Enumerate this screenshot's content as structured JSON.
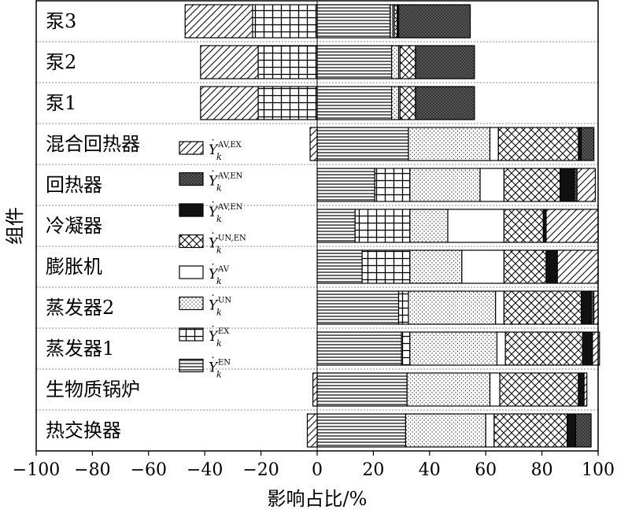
{
  "chart_data": {
    "type": "bar",
    "orientation": "horizontal",
    "stacked": true,
    "xlabel": "影响占比/%",
    "ylabel": "组件",
    "xlim": [
      -100,
      100
    ],
    "xticks": [
      "−100",
      "−80",
      "−60",
      "−40",
      "−20",
      "0",
      "20",
      "40",
      "60",
      "80",
      "100"
    ],
    "grid": false,
    "legend_position": "left",
    "categories": [
      "泵3",
      "泵2",
      "泵1",
      "混合回热器",
      "回热器",
      "冷凝器",
      "膨胀机",
      "蒸发器2",
      "蒸发器1",
      "生物质锅炉",
      "热交换器"
    ],
    "series": [
      {
        "key": "en",
        "name": "EN",
        "pattern": "hlines",
        "values": [
          0,
          0,
          0,
          32.5,
          20.5,
          13.5,
          16,
          29,
          30,
          32,
          31.5
        ],
        "neg": [
          0,
          0,
          0,
          0,
          0,
          0,
          0,
          0,
          0,
          0,
          0
        ],
        "pos_split": [
          26,
          26.5,
          26.5,
          0,
          0,
          0,
          0,
          0,
          0,
          0,
          0
        ]
      },
      {
        "key": "ex",
        "name": "EX",
        "pattern": "grid",
        "values": [
          0,
          0,
          0,
          0,
          12.5,
          19.5,
          17,
          3.5,
          3,
          0,
          0
        ],
        "neg": [
          -23,
          -21,
          -21,
          0,
          0,
          0,
          0,
          0,
          0,
          0,
          0
        ]
      },
      {
        "key": "un",
        "name": "UN",
        "pattern": "dots",
        "values": [
          1,
          2.5,
          2.5,
          29,
          25,
          13.5,
          18.5,
          31,
          31,
          29.5,
          28.5
        ],
        "neg": [
          0,
          0,
          0,
          0,
          0,
          0,
          0,
          0,
          0,
          0,
          0
        ]
      },
      {
        "key": "av",
        "name": "AV",
        "pattern": "white",
        "values": [
          0.5,
          0.5,
          0.5,
          3,
          8.5,
          20,
          15,
          3,
          3,
          3.5,
          3
        ],
        "neg": [
          0,
          0,
          0,
          0,
          0,
          0,
          0,
          0,
          0,
          0,
          0
        ]
      },
      {
        "key": "unen",
        "name": "UN.EN",
        "pattern": "crosshatch",
        "values": [
          1,
          5.5,
          5.5,
          28.5,
          20,
          14,
          15,
          27.5,
          27.5,
          28,
          26
        ],
        "neg": [
          0,
          0,
          0,
          0,
          0,
          0,
          0,
          0,
          0,
          0,
          0
        ]
      },
      {
        "key": "aven",
        "name": "AV.EN",
        "pattern": "solid",
        "values": [
          0.5,
          0,
          0,
          1,
          5,
          1,
          4,
          3.5,
          3.5,
          2,
          3
        ],
        "neg": [
          0,
          0,
          0,
          0,
          0,
          0,
          0,
          0,
          0,
          0,
          0
        ]
      },
      {
        "key": "avenen",
        "name": "AV.EN",
        "pattern": "darkdots",
        "values": [
          25.5,
          21,
          21,
          4.5,
          1,
          0,
          0,
          1,
          0,
          0,
          5.5
        ],
        "neg": [
          0,
          0,
          0,
          0,
          0,
          0,
          0,
          0,
          0,
          0,
          0
        ]
      },
      {
        "key": "avex",
        "name": "AV.EX",
        "pattern": "diag",
        "values": [
          0,
          0,
          0,
          0,
          6.5,
          18.5,
          14.5,
          1.5,
          2.5,
          1,
          0
        ],
        "neg": [
          -24,
          -20.5,
          -20.5,
          -2.5,
          0,
          0,
          0,
          0,
          0,
          -1.5,
          -3.5
        ]
      }
    ]
  },
  "legend": [
    {
      "pattern": "diag",
      "sup": "AV,EX"
    },
    {
      "pattern": "darkdots",
      "sup": "AV,EN"
    },
    {
      "pattern": "solid",
      "sup": "AV,EN"
    },
    {
      "pattern": "crosshatch",
      "sup": "UN,EN"
    },
    {
      "pattern": "white",
      "sup": "AV"
    },
    {
      "pattern": "dots",
      "sup": "UN"
    },
    {
      "pattern": "grid",
      "sup": "EX"
    },
    {
      "pattern": "hlines",
      "sup": "EN"
    }
  ],
  "legend_symbol": "Y",
  "legend_subscript": "k"
}
